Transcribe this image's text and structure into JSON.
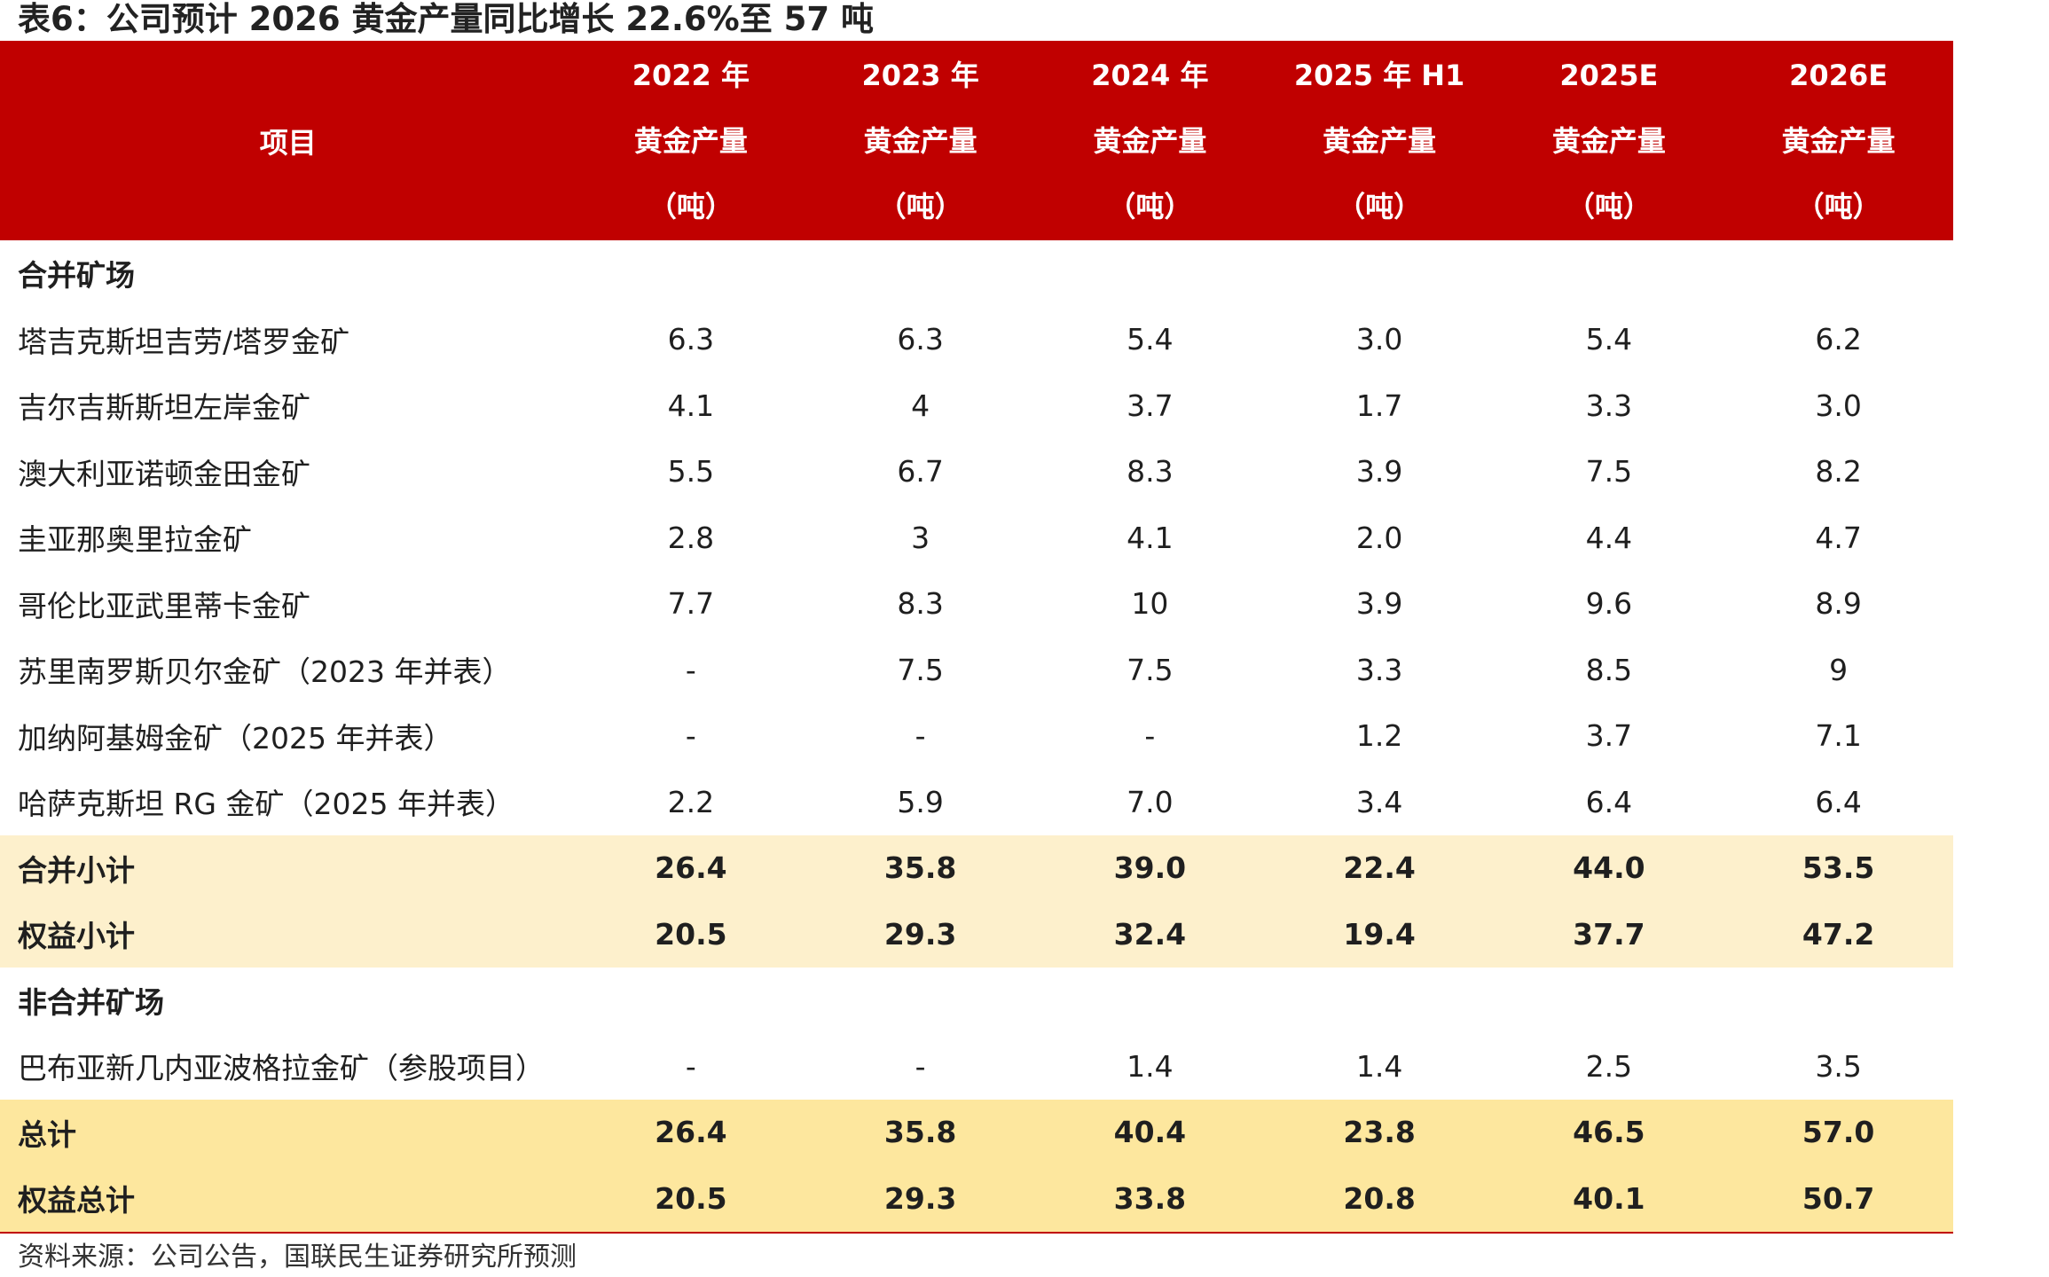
{
  "title": "表6：公司预计 2026 黄金产量同比增长 22.6%至 57 吨",
  "header": {
    "item_label": "项目",
    "columns": [
      {
        "line1": "2022 年",
        "line2": "黄金产量",
        "line3": "（吨）"
      },
      {
        "line1": "2023 年",
        "line2": "黄金产量",
        "line3": "（吨）"
      },
      {
        "line1": "2024 年",
        "line2": "黄金产量",
        "line3": "（吨）"
      },
      {
        "line1": "2025 年 H1",
        "line2": "黄金产量",
        "line3": "（吨）"
      },
      {
        "line1": "2025E",
        "line2": "黄金产量",
        "line3": "（吨）"
      },
      {
        "line1": "2026E",
        "line2": "黄金产量",
        "line3": "（吨）"
      }
    ]
  },
  "rows": [
    {
      "label": "合并矿场",
      "values": [
        "",
        "",
        "",
        "",
        "",
        ""
      ]
    },
    {
      "label": "塔吉克斯坦吉劳/塔罗金矿",
      "values": [
        "6.3",
        "6.3",
        "5.4",
        "3.0",
        "5.4",
        "6.2"
      ]
    },
    {
      "label": "吉尔吉斯斯坦左岸金矿",
      "values": [
        "4.1",
        "4",
        "3.7",
        "1.7",
        "3.3",
        "3.0"
      ]
    },
    {
      "label": "澳大利亚诺顿金田金矿",
      "values": [
        "5.5",
        "6.7",
        "8.3",
        "3.9",
        "7.5",
        "8.2"
      ]
    },
    {
      "label": "圭亚那奥里拉金矿",
      "values": [
        "2.8",
        "3",
        "4.1",
        "2.0",
        "4.4",
        "4.7"
      ]
    },
    {
      "label": "哥伦比亚武里蒂卡金矿",
      "values": [
        "7.7",
        "8.3",
        "10",
        "3.9",
        "9.6",
        "8.9"
      ]
    },
    {
      "label": "苏里南罗斯贝尔金矿（2023 年并表）",
      "values": [
        "-",
        "7.5",
        "7.5",
        "3.3",
        "8.5",
        "9"
      ]
    },
    {
      "label": "加纳阿基姆金矿（2025 年并表）",
      "values": [
        "-",
        "-",
        "-",
        "1.2",
        "3.7",
        "7.1"
      ]
    },
    {
      "label": "哈萨克斯坦 RG 金矿（2025 年并表）",
      "values": [
        "2.2",
        "5.9",
        "7.0",
        "3.4",
        "6.4",
        "6.4"
      ]
    },
    {
      "label": "合并小计",
      "values": [
        "26.4",
        "35.8",
        "39.0",
        "22.4",
        "44.0",
        "53.5"
      ]
    },
    {
      "label": "权益小计",
      "values": [
        "20.5",
        "29.3",
        "32.4",
        "19.4",
        "37.7",
        "47.2"
      ]
    },
    {
      "label": "非合并矿场",
      "values": [
        "",
        "",
        "",
        "",
        "",
        ""
      ]
    },
    {
      "label": "巴布亚新几内亚波格拉金矿（参股项目）",
      "values": [
        "-",
        "-",
        "1.4",
        "1.4",
        "2.5",
        "3.5"
      ]
    },
    {
      "label": "总计",
      "values": [
        "26.4",
        "35.8",
        "40.4",
        "23.8",
        "46.5",
        "57.0"
      ]
    },
    {
      "label": "权益总计",
      "values": [
        "20.5",
        "29.3",
        "33.8",
        "20.8",
        "40.1",
        "50.7"
      ]
    }
  ],
  "source": "资料来源：公司公告，国联民生证券研究所预测",
  "colors": {
    "header_bg": "#c00000",
    "subtotal_bg": "#fdf0cc",
    "total_bg": "#fde79e"
  }
}
